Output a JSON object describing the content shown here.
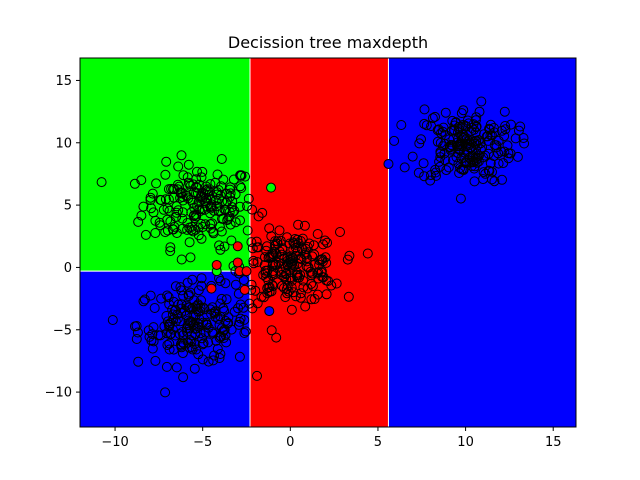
{
  "chart_data": {
    "type": "scatter",
    "title": "Decission tree maxdepth",
    "xlabel": "",
    "ylabel": "",
    "xlim": [
      -12,
      16.3
    ],
    "ylim": [
      -12.8,
      16.8
    ],
    "xticks": [
      -10,
      -5,
      0,
      5,
      10,
      15
    ],
    "yticks": [
      -10,
      -5,
      0,
      5,
      10,
      15
    ],
    "xtick_labels": [
      "−10",
      "−5",
      "0",
      "5",
      "10",
      "15"
    ],
    "ytick_labels": [
      "−10",
      "−5",
      "0",
      "5",
      "10",
      "15"
    ],
    "grid": false,
    "legend": "none",
    "colors": {
      "green": "#00ff00",
      "red": "#ff0000",
      "blue": "#0000ff",
      "edge": "#000000"
    },
    "regions": [
      {
        "class": "green",
        "x": [
          -12,
          -2.3
        ],
        "y": [
          -0.3,
          16.8
        ]
      },
      {
        "class": "blue",
        "x": [
          -12,
          -2.3
        ],
        "y": [
          -12.8,
          -0.3
        ]
      },
      {
        "class": "red",
        "x": [
          -2.3,
          5.6
        ],
        "y": [
          -12.8,
          16.8
        ]
      },
      {
        "class": "blue",
        "x": [
          5.6,
          16.3
        ],
        "y": [
          -12.8,
          16.8
        ]
      }
    ],
    "clusters": [
      {
        "name": "upper-left",
        "center": [
          -5.2,
          5.0
        ],
        "std": [
          1.6,
          1.6
        ],
        "n": 200,
        "fill": "none"
      },
      {
        "name": "lower-left",
        "center": [
          -5.5,
          -4.6
        ],
        "std": [
          1.6,
          1.6
        ],
        "n": 200,
        "fill": "none"
      },
      {
        "name": "middle",
        "center": [
          0.0,
          0.0
        ],
        "std": [
          1.4,
          1.4
        ],
        "n": 200,
        "fill": "none"
      },
      {
        "name": "upper-right",
        "center": [
          10.0,
          9.8
        ],
        "std": [
          1.4,
          1.5
        ],
        "n": 200,
        "fill": "none"
      }
    ],
    "highlighted_points": [
      {
        "x": -1.1,
        "y": 6.4,
        "fill": "green"
      },
      {
        "x": -4.2,
        "y": -0.3,
        "fill": "green"
      },
      {
        "x": -3.0,
        "y": 1.7,
        "fill": "red"
      },
      {
        "x": -4.2,
        "y": 0.2,
        "fill": "red"
      },
      {
        "x": -3.0,
        "y": 0.4,
        "fill": "red"
      },
      {
        "x": -2.9,
        "y": -0.3,
        "fill": "red"
      },
      {
        "x": -2.5,
        "y": -0.3,
        "fill": "red"
      },
      {
        "x": -4.5,
        "y": -1.7,
        "fill": "red"
      },
      {
        "x": -2.6,
        "y": -1.8,
        "fill": "red"
      },
      {
        "x": -1.2,
        "y": -3.5,
        "fill": "blue"
      },
      {
        "x": 5.6,
        "y": 8.3,
        "fill": "blue"
      }
    ]
  }
}
